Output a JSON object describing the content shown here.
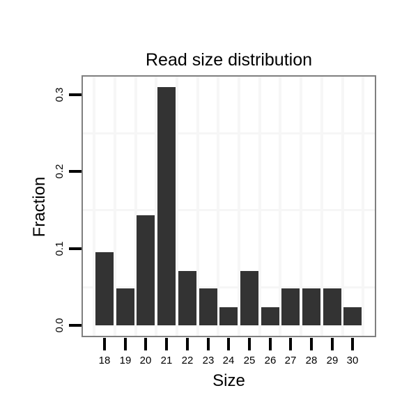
{
  "chart_data": {
    "type": "bar",
    "title": "Read size distribution",
    "xlabel": "Size",
    "ylabel": "Fraction",
    "categories": [
      "18",
      "19",
      "20",
      "21",
      "22",
      "23",
      "24",
      "25",
      "26",
      "27",
      "28",
      "29",
      "30"
    ],
    "values": [
      0.095,
      0.048,
      0.143,
      0.31,
      0.071,
      0.048,
      0.024,
      0.071,
      0.024,
      0.048,
      0.048,
      0.048,
      0.024
    ],
    "y_tick_labels": [
      "0.0",
      "0.1",
      "0.2",
      "0.3"
    ],
    "y_tick_values": [
      0.0,
      0.1,
      0.2,
      0.3
    ],
    "ylim": [
      0,
      0.31
    ],
    "grid": "on",
    "legend_position": "none",
    "colors": {
      "bar": "#333333",
      "panel_border": "#7f7f7f",
      "gridline": "#f6f6f6",
      "tick": "#000000",
      "text": "#000000",
      "background": "#ffffff"
    }
  }
}
